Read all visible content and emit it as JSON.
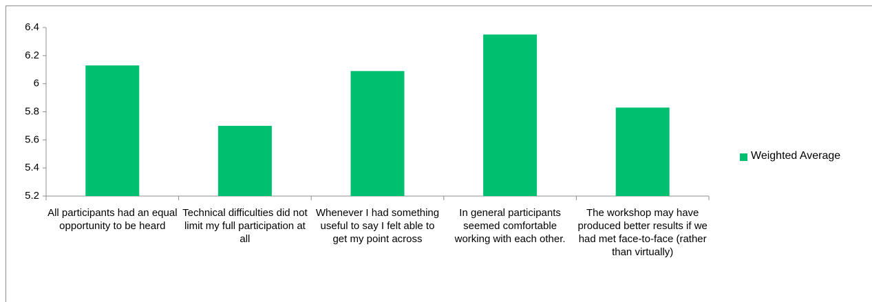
{
  "chart_data": {
    "type": "bar",
    "categories": [
      "All participants had an equal opportunity to be heard",
      "Technical difficulties did not limit my full participation at all",
      "Whenever I had something useful to say I felt able to get my point across",
      "In general participants seemed comfortable working with each other.",
      "The workshop may have produced better results if we had met face-to-face (rather than virtually)"
    ],
    "series": [
      {
        "name": "Weighted Average",
        "color": "#00bf6f",
        "values": [
          6.13,
          5.7,
          6.09,
          6.35,
          5.83
        ]
      }
    ],
    "ylim": [
      5.2,
      6.4
    ],
    "yticks": [
      5.2,
      5.4,
      5.6,
      5.8,
      6,
      6.2,
      6.4
    ],
    "grid": false,
    "legend": "right"
  }
}
